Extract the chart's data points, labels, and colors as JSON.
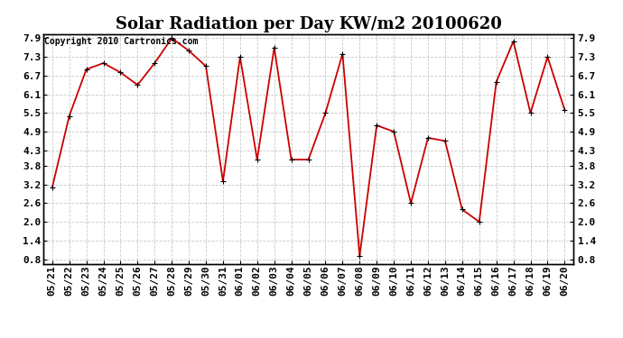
{
  "title": "Solar Radiation per Day KW/m2 20100620",
  "copyright_text": "Copyright 2010 Cartronics.com",
  "dates": [
    "05/21",
    "05/22",
    "05/23",
    "05/24",
    "05/25",
    "05/26",
    "05/27",
    "05/28",
    "05/29",
    "05/30",
    "05/31",
    "06/01",
    "06/02",
    "06/03",
    "06/04",
    "06/05",
    "06/06",
    "06/07",
    "06/08",
    "06/09",
    "06/10",
    "06/11",
    "06/12",
    "06/13",
    "06/14",
    "06/15",
    "06/16",
    "06/17",
    "06/18",
    "06/19",
    "06/20"
  ],
  "values": [
    3.1,
    5.4,
    6.9,
    7.1,
    6.8,
    6.4,
    7.1,
    7.9,
    7.5,
    7.0,
    3.3,
    7.3,
    4.0,
    7.6,
    4.0,
    4.0,
    5.5,
    7.4,
    0.9,
    5.1,
    4.9,
    2.6,
    4.7,
    4.6,
    2.4,
    2.0,
    6.5,
    7.8,
    5.5,
    7.3,
    5.6
  ],
  "line_color": "#cc0000",
  "background_color": "#ffffff",
  "grid_color": "#c8c8c8",
  "yticks": [
    0.8,
    1.4,
    2.0,
    2.6,
    3.2,
    3.8,
    4.3,
    4.9,
    5.5,
    6.1,
    6.7,
    7.3,
    7.9
  ],
  "title_fontsize": 13,
  "tick_fontsize": 8,
  "copyright_fontsize": 7
}
